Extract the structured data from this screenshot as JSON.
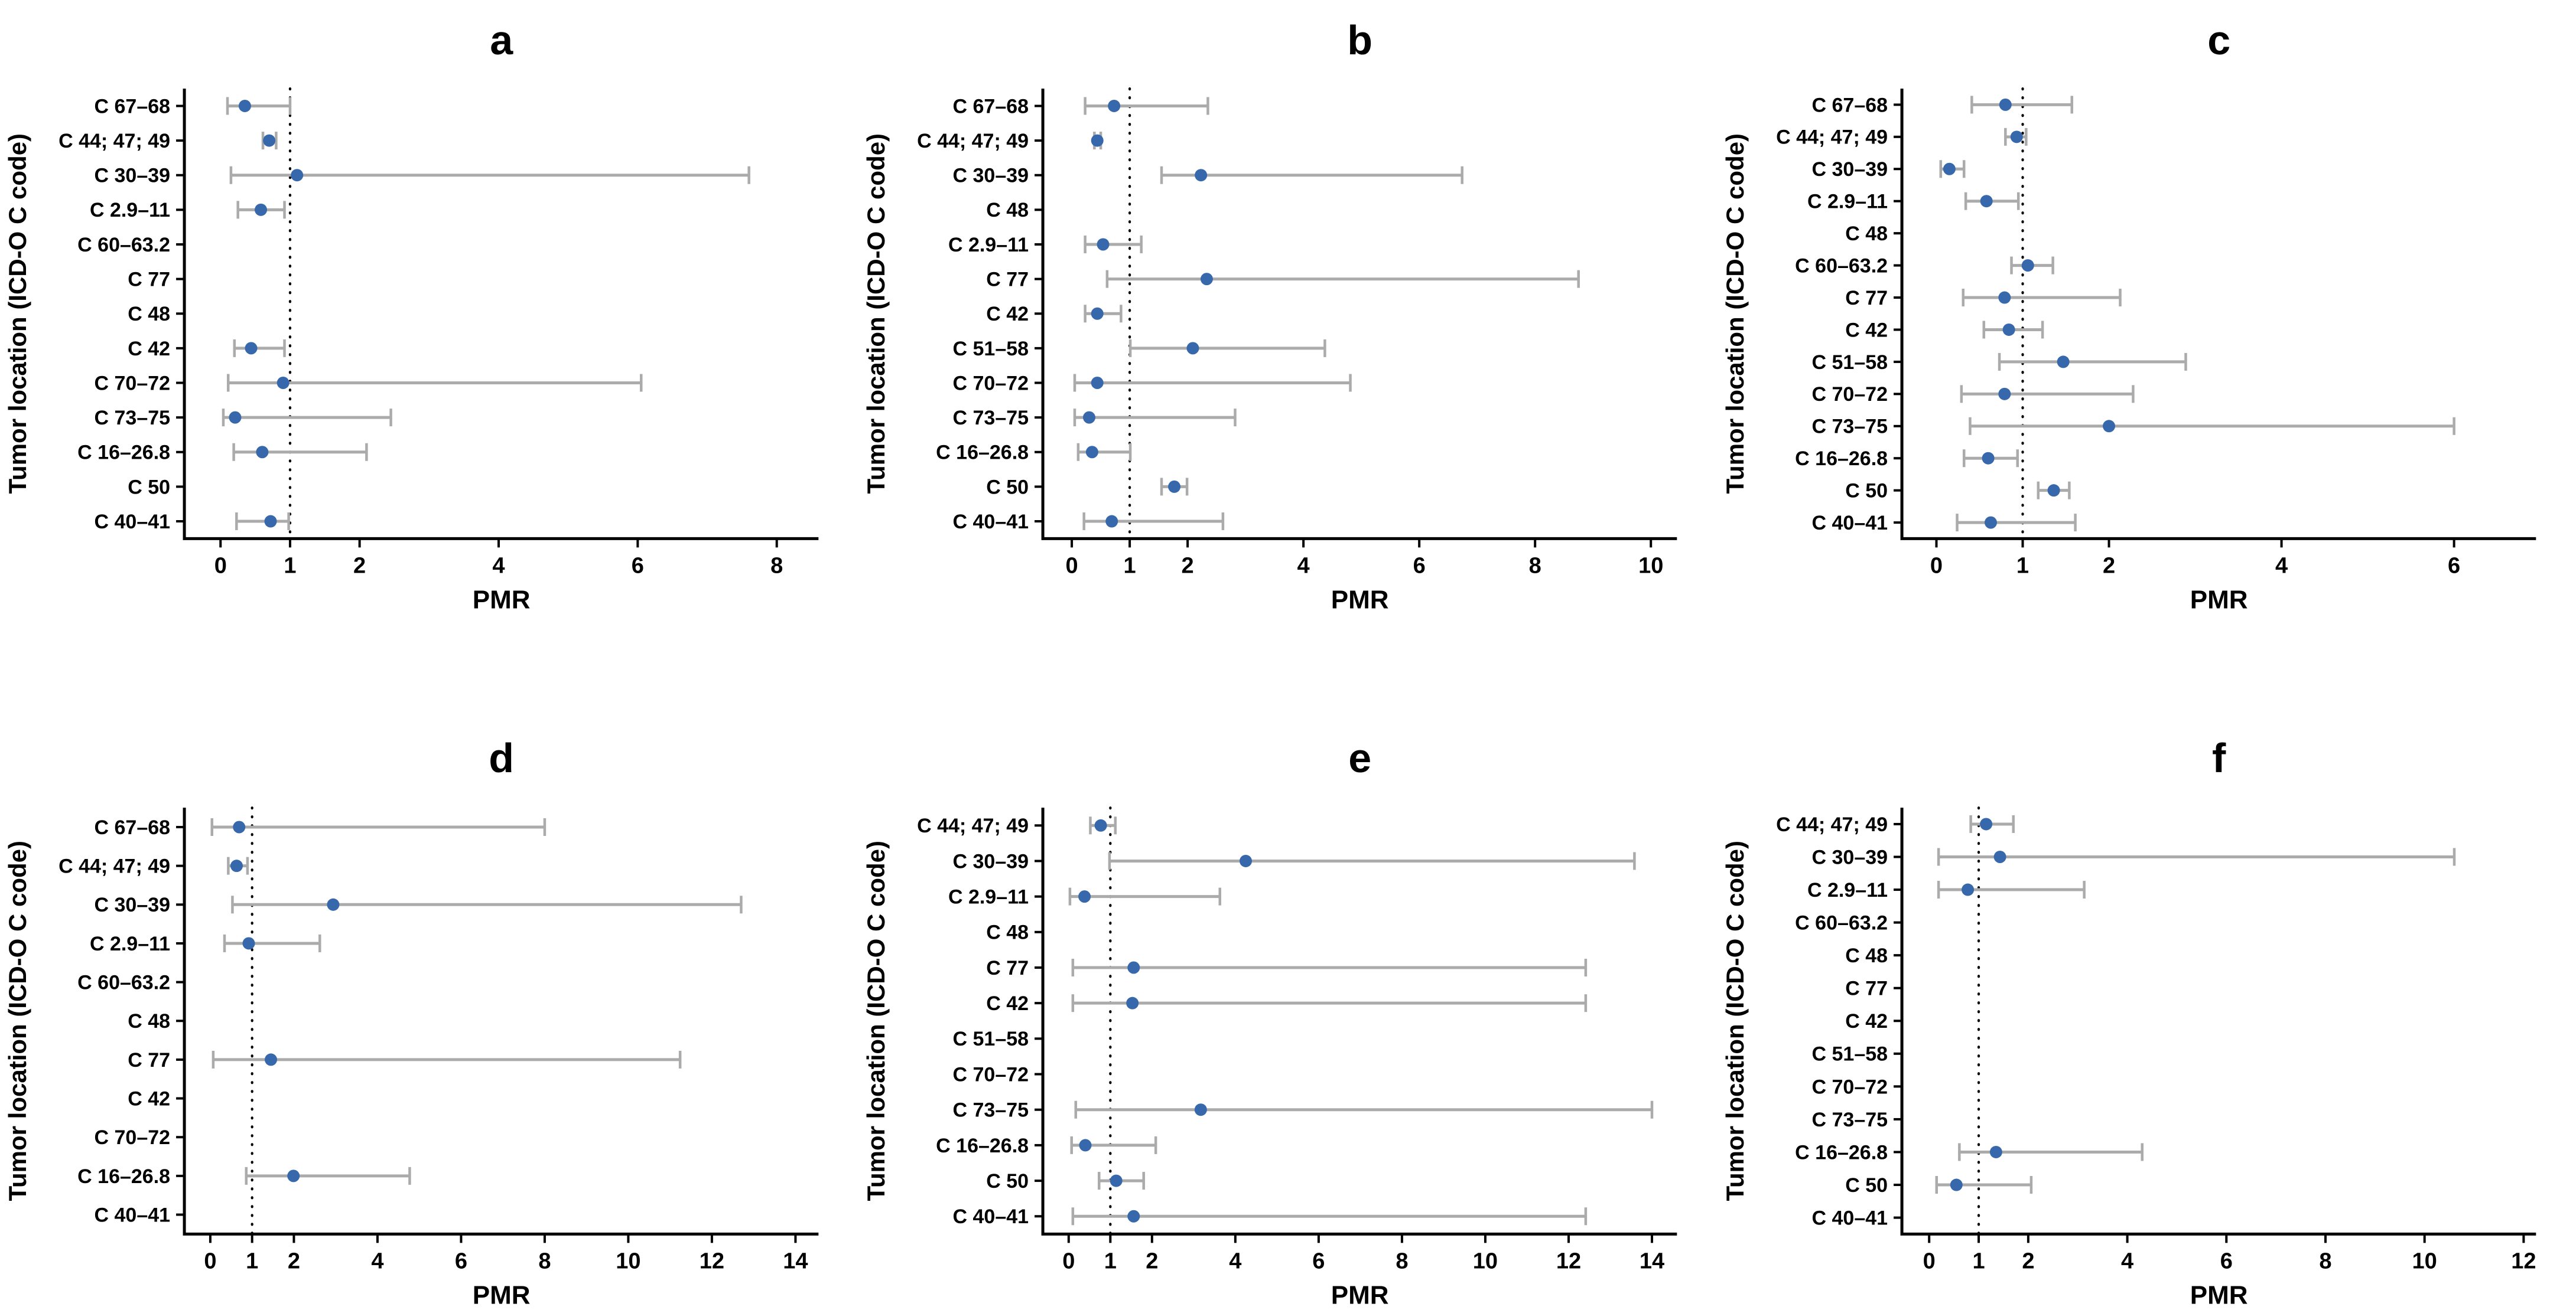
{
  "figure": {
    "xlabel": "PMR",
    "ylabel": "Tumor location (ICD-O C code)",
    "background_color": "#ffffff",
    "point_color": "#3768AC",
    "error_bar_color": "#ABABAB",
    "axis_color": "#000000",
    "reference_line_color": "#000000"
  },
  "chart_data": [
    {
      "type": "scatter",
      "title": "a",
      "xlabel": "PMR",
      "ylabel": "Tumor location (ICD-O C code)",
      "xticks": [
        0,
        1,
        2,
        4,
        6,
        8
      ],
      "xlim": [
        -0.52,
        8.6
      ],
      "reference_line_x": 1,
      "grid": false,
      "rows": [
        {
          "label": "C 67–68",
          "pmr": 0.35,
          "ci": [
            0.1,
            1.0
          ]
        },
        {
          "label": "C 44; 47; 49",
          "pmr": 0.7,
          "ci": [
            0.61,
            0.8
          ]
        },
        {
          "label": "C 30–39",
          "pmr": 1.1,
          "ci": [
            0.15,
            7.6
          ]
        },
        {
          "label": "C 2.9–11",
          "pmr": 0.58,
          "ci": [
            0.25,
            0.92
          ]
        },
        {
          "label": "C 60–63.2",
          "pmr": null,
          "ci": null
        },
        {
          "label": "C 77",
          "pmr": null,
          "ci": null
        },
        {
          "label": "C 48",
          "pmr": null,
          "ci": null
        },
        {
          "label": "C 42",
          "pmr": 0.44,
          "ci": [
            0.2,
            0.92
          ]
        },
        {
          "label": "C 70–72",
          "pmr": 0.9,
          "ci": [
            0.11,
            6.05
          ]
        },
        {
          "label": "C 73–75",
          "pmr": 0.21,
          "ci": [
            0.04,
            2.45
          ]
        },
        {
          "label": "C 16–26.8",
          "pmr": 0.6,
          "ci": [
            0.19,
            2.1
          ]
        },
        {
          "label": "C 50",
          "pmr": null,
          "ci": null
        },
        {
          "label": "C 40–41",
          "pmr": 0.72,
          "ci": [
            0.23,
            0.98
          ]
        }
      ]
    },
    {
      "type": "scatter",
      "title": "b",
      "xlabel": "PMR",
      "ylabel": "Tumor location (ICD-O C code)",
      "xticks": [
        0,
        1,
        2,
        4,
        6,
        8,
        10
      ],
      "xlim": [
        -0.5,
        10.45
      ],
      "reference_line_x": 1,
      "grid": false,
      "rows": [
        {
          "label": "C 67–68",
          "pmr": 0.73,
          "ci": [
            0.23,
            2.35
          ]
        },
        {
          "label": "C 44; 47; 49",
          "pmr": 0.44,
          "ci": [
            0.39,
            0.5
          ]
        },
        {
          "label": "C 30–39",
          "pmr": 2.23,
          "ci": [
            1.55,
            6.74
          ]
        },
        {
          "label": "C 48",
          "pmr": null,
          "ci": null
        },
        {
          "label": "C 2.9–11",
          "pmr": 0.54,
          "ci": [
            0.23,
            1.2
          ]
        },
        {
          "label": "C 77",
          "pmr": 2.33,
          "ci": [
            0.61,
            8.75
          ]
        },
        {
          "label": "C 42",
          "pmr": 0.44,
          "ci": [
            0.23,
            0.85
          ]
        },
        {
          "label": "C 51–58",
          "pmr": 2.09,
          "ci": [
            1.01,
            4.37
          ]
        },
        {
          "label": "C 70–72",
          "pmr": 0.44,
          "ci": [
            0.05,
            4.81
          ]
        },
        {
          "label": "C 73–75",
          "pmr": 0.3,
          "ci": [
            0.05,
            2.82
          ]
        },
        {
          "label": "C 16–26.8",
          "pmr": 0.35,
          "ci": [
            0.11,
            1.01
          ]
        },
        {
          "label": "C 50",
          "pmr": 1.77,
          "ci": [
            1.55,
            1.99
          ]
        },
        {
          "label": "C 40–41",
          "pmr": 0.69,
          "ci": [
            0.21,
            2.61
          ]
        }
      ]
    },
    {
      "type": "scatter",
      "title": "c",
      "xlabel": "PMR",
      "ylabel": "Tumor location (ICD-O C code)",
      "xticks": [
        0,
        1,
        2,
        4,
        6
      ],
      "xlim": [
        -0.4,
        6.95
      ],
      "reference_line_x": 1,
      "grid": false,
      "rows": [
        {
          "label": "C 67–68",
          "pmr": 0.8,
          "ci": [
            0.41,
            1.57
          ]
        },
        {
          "label": "C 44; 47; 49",
          "pmr": 0.93,
          "ci": [
            0.8,
            1.04
          ]
        },
        {
          "label": "C 30–39",
          "pmr": 0.15,
          "ci": [
            0.05,
            0.32
          ]
        },
        {
          "label": "C 2.9–11",
          "pmr": 0.58,
          "ci": [
            0.34,
            0.95
          ]
        },
        {
          "label": "C 48",
          "pmr": null,
          "ci": null
        },
        {
          "label": "C 60–63.2",
          "pmr": 1.06,
          "ci": [
            0.87,
            1.35
          ]
        },
        {
          "label": "C 77",
          "pmr": 0.79,
          "ci": [
            0.31,
            2.13
          ]
        },
        {
          "label": "C 42",
          "pmr": 0.84,
          "ci": [
            0.55,
            1.23
          ]
        },
        {
          "label": "C 51–58",
          "pmr": 1.47,
          "ci": [
            0.73,
            2.89
          ]
        },
        {
          "label": "C 70–72",
          "pmr": 0.79,
          "ci": [
            0.29,
            2.28
          ]
        },
        {
          "label": "C 73–75",
          "pmr": 2.0,
          "ci": [
            0.39,
            6.0
          ]
        },
        {
          "label": "C 16–26.8",
          "pmr": 0.6,
          "ci": [
            0.32,
            0.94
          ]
        },
        {
          "label": "C 50",
          "pmr": 1.36,
          "ci": [
            1.18,
            1.54
          ]
        },
        {
          "label": "C 40–41",
          "pmr": 0.63,
          "ci": [
            0.24,
            1.61
          ]
        }
      ]
    },
    {
      "type": "scatter",
      "title": "d",
      "xlabel": "PMR",
      "ylabel": "Tumor location (ICD-O C code)",
      "xticks": [
        0,
        1,
        2,
        4,
        6,
        8,
        10,
        12,
        14
      ],
      "xlim": [
        -0.62,
        14.55
      ],
      "reference_line_x": 1,
      "grid": false,
      "rows": [
        {
          "label": "C 67–68",
          "pmr": 0.69,
          "ci": [
            0.04,
            8.0
          ]
        },
        {
          "label": "C 44; 47; 49",
          "pmr": 0.63,
          "ci": [
            0.43,
            0.89
          ]
        },
        {
          "label": "C 30–39",
          "pmr": 2.94,
          "ci": [
            0.53,
            12.7
          ]
        },
        {
          "label": "C 2.9–11",
          "pmr": 0.92,
          "ci": [
            0.34,
            2.62
          ]
        },
        {
          "label": "C 60–63.2",
          "pmr": null,
          "ci": null
        },
        {
          "label": "C 48",
          "pmr": null,
          "ci": null
        },
        {
          "label": "C 77",
          "pmr": 1.45,
          "ci": [
            0.07,
            11.24
          ]
        },
        {
          "label": "C 42",
          "pmr": null,
          "ci": null
        },
        {
          "label": "C 70–72",
          "pmr": null,
          "ci": null
        },
        {
          "label": "C 16–26.8",
          "pmr": 1.99,
          "ci": [
            0.86,
            4.77
          ]
        },
        {
          "label": "C 40–41",
          "pmr": null,
          "ci": null
        }
      ]
    },
    {
      "type": "scatter",
      "title": "e",
      "xlabel": "PMR",
      "ylabel": "Tumor location (ICD-O C code)",
      "xticks": [
        0,
        1,
        2,
        4,
        6,
        8,
        10,
        12,
        14
      ],
      "xlim": [
        -0.62,
        14.6
      ],
      "reference_line_x": 1,
      "grid": false,
      "rows": [
        {
          "label": "C 44; 47; 49",
          "pmr": 0.77,
          "ci": [
            0.52,
            1.12
          ]
        },
        {
          "label": "C 30–39",
          "pmr": 4.25,
          "ci": [
            0.98,
            13.58
          ]
        },
        {
          "label": "C 2.9–11",
          "pmr": 0.38,
          "ci": [
            0.03,
            3.63
          ]
        },
        {
          "label": "C 48",
          "pmr": null,
          "ci": null
        },
        {
          "label": "C 77",
          "pmr": 1.56,
          "ci": [
            0.1,
            12.41
          ]
        },
        {
          "label": "C 42",
          "pmr": 1.53,
          "ci": [
            0.1,
            12.41
          ]
        },
        {
          "label": "C 51–58",
          "pmr": null,
          "ci": null
        },
        {
          "label": "C 70–72",
          "pmr": null,
          "ci": null
        },
        {
          "label": "C 73–75",
          "pmr": 3.17,
          "ci": [
            0.17,
            14.0
          ]
        },
        {
          "label": "C 16–26.8",
          "pmr": 0.4,
          "ci": [
            0.07,
            2.09
          ]
        },
        {
          "label": "C 50",
          "pmr": 1.14,
          "ci": [
            0.73,
            1.8
          ]
        },
        {
          "label": "C 40–41",
          "pmr": 1.56,
          "ci": [
            0.1,
            12.41
          ]
        }
      ]
    },
    {
      "type": "scatter",
      "title": "f",
      "xlabel": "PMR",
      "ylabel": "Tumor location (ICD-O C code)",
      "xticks": [
        0,
        1,
        2,
        4,
        6,
        8,
        10,
        12
      ],
      "xlim": [
        -0.55,
        12.25
      ],
      "reference_line_x": 1,
      "grid": false,
      "rows": [
        {
          "label": "C 44; 47; 49",
          "pmr": 1.15,
          "ci": [
            0.84,
            1.7
          ]
        },
        {
          "label": "C 30–39",
          "pmr": 1.43,
          "ci": [
            0.19,
            10.6
          ]
        },
        {
          "label": "C 2.9–11",
          "pmr": 0.78,
          "ci": [
            0.19,
            3.13
          ]
        },
        {
          "label": "C 60–63.2",
          "pmr": null,
          "ci": null
        },
        {
          "label": "C 48",
          "pmr": null,
          "ci": null
        },
        {
          "label": "C 77",
          "pmr": null,
          "ci": null
        },
        {
          "label": "C 42",
          "pmr": null,
          "ci": null
        },
        {
          "label": "C 51–58",
          "pmr": null,
          "ci": null
        },
        {
          "label": "C 70–72",
          "pmr": null,
          "ci": null
        },
        {
          "label": "C 73–75",
          "pmr": null,
          "ci": null
        },
        {
          "label": "C 16–26.8",
          "pmr": 1.35,
          "ci": [
            0.61,
            4.3
          ]
        },
        {
          "label": "C 50",
          "pmr": 0.55,
          "ci": [
            0.15,
            2.06
          ]
        },
        {
          "label": "C 40–41",
          "pmr": null,
          "ci": null
        }
      ]
    }
  ]
}
